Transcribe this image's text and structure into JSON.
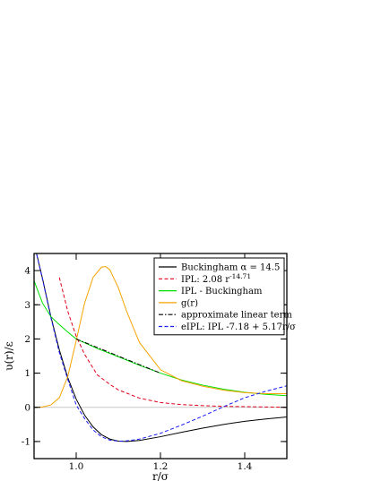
{
  "chart_data": {
    "type": "line",
    "title": "",
    "xlabel": "r/σ",
    "ylabel": "υ(r)/ε",
    "xlim": [
      0.9,
      1.5
    ],
    "ylim": [
      -1.5,
      4.5
    ],
    "xticks": [
      1.0,
      1.2,
      1.4
    ],
    "xtick_labels": [
      "1.0",
      "1.2",
      "1.4"
    ],
    "yticks": [
      -1,
      0,
      1,
      2,
      3,
      4
    ],
    "ytick_labels": [
      "-1",
      "0",
      "1",
      "2",
      "3",
      "4"
    ],
    "reference_line_y": 0,
    "grid": false,
    "legend_position": "top-right",
    "series": [
      {
        "name": "Buckingham α = 14.5",
        "color": "#000000",
        "dash": "solid",
        "x": [
          0.9,
          0.92,
          0.94,
          0.96,
          0.98,
          1.0,
          1.02,
          1.04,
          1.06,
          1.08,
          1.1,
          1.12,
          1.15,
          1.2,
          1.25,
          1.3,
          1.35,
          1.4,
          1.45,
          1.5
        ],
        "y": [
          4.8,
          3.77,
          2.65,
          1.68,
          0.87,
          0.24,
          -0.23,
          -0.57,
          -0.8,
          -0.93,
          -0.99,
          -1.0,
          -0.97,
          -0.86,
          -0.73,
          -0.61,
          -0.5,
          -0.41,
          -0.34,
          -0.28
        ]
      },
      {
        "name": "IPL: 2.08 r^-14.71",
        "color": "#e0001b",
        "dash": "dashed",
        "x": [
          0.96,
          0.98,
          1.0,
          1.02,
          1.05,
          1.08,
          1.1,
          1.15,
          1.2,
          1.25,
          1.3,
          1.35,
          1.4,
          1.45,
          1.5
        ],
        "y": [
          3.8,
          2.81,
          2.08,
          1.55,
          0.95,
          0.67,
          0.51,
          0.27,
          0.14,
          0.08,
          0.05,
          0.03,
          0.02,
          0.01,
          0.005
        ]
      },
      {
        "name": "IPL - Buckingham",
        "color": "#00e000",
        "dash": "solid",
        "x": [
          0.9,
          0.92,
          0.94,
          0.96,
          0.98,
          1.0,
          1.05,
          1.1,
          1.15,
          1.2,
          1.25,
          1.3,
          1.35,
          1.4,
          1.45,
          1.5
        ],
        "y": [
          3.7,
          3.05,
          2.65,
          2.42,
          2.2,
          2.0,
          1.72,
          1.48,
          1.23,
          1.0,
          0.8,
          0.65,
          0.53,
          0.44,
          0.38,
          0.34
        ]
      },
      {
        "name": "g(r)",
        "color": "#f5a300",
        "dash": "solid",
        "x": [
          0.9,
          0.92,
          0.94,
          0.96,
          0.98,
          1.0,
          1.02,
          1.04,
          1.06,
          1.07,
          1.08,
          1.1,
          1.12,
          1.15,
          1.2,
          1.25,
          1.3,
          1.35,
          1.4,
          1.45,
          1.5
        ],
        "y": [
          0.0,
          0.01,
          0.07,
          0.28,
          0.9,
          1.95,
          3.05,
          3.8,
          4.1,
          4.12,
          4.02,
          3.5,
          2.8,
          1.9,
          1.1,
          0.78,
          0.62,
          0.5,
          0.43,
          0.4,
          0.4
        ]
      },
      {
        "name": "approximate linear term",
        "color": "#000000",
        "dash": "dashdot",
        "x": [
          1.0,
          1.2
        ],
        "y": [
          2.0,
          1.0
        ]
      },
      {
        "name": "eIPL: IPL -7.18 + 5.17r/σ",
        "color": "#1b1bff",
        "dash": "dashed",
        "x": [
          0.9,
          0.92,
          0.94,
          0.96,
          0.98,
          1.0,
          1.02,
          1.04,
          1.06,
          1.08,
          1.1,
          1.12,
          1.15,
          1.2,
          1.25,
          1.3,
          1.35,
          1.4,
          1.45,
          1.5
        ],
        "y": [
          4.8,
          3.75,
          2.62,
          1.6,
          0.82,
          0.07,
          -0.33,
          -0.66,
          -0.86,
          -0.96,
          -0.99,
          -0.98,
          -0.93,
          -0.76,
          -0.52,
          -0.26,
          0.02,
          0.28,
          0.47,
          0.63
        ]
      }
    ]
  }
}
